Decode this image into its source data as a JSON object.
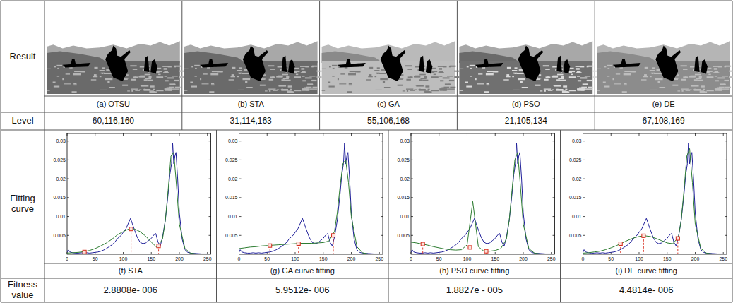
{
  "row_headers": [
    "Result",
    "Level",
    "Fitting curve",
    "Fitness value"
  ],
  "results": [
    {
      "caption": "(a) OTSU",
      "level": "60,116,160"
    },
    {
      "caption": "(b) STA",
      "level": "31,114,163"
    },
    {
      "caption": "(c) GA",
      "level": "55,106,168"
    },
    {
      "caption": "(d) PSO",
      "level": "21,105,134"
    },
    {
      "caption": "(e) DE",
      "level": "67,108,169"
    }
  ],
  "fitness_values": [
    "2.8808e- 006",
    "5.9512e- 006",
    "1.8827e - 005",
    "4.4814e- 006"
  ],
  "chart_data": [
    {
      "type": "line",
      "title": "(f) STA",
      "xlim": [
        0,
        256
      ],
      "ylim": [
        0,
        0.032
      ],
      "xticks": [
        0,
        50,
        100,
        150,
        200,
        250
      ],
      "yticks": [
        0.005,
        0.01,
        0.015,
        0.02,
        0.025,
        0.03
      ],
      "series": [
        {
          "type": "line",
          "color": "#1f1f99",
          "x": [
            0,
            2,
            5,
            10,
            15,
            20,
            25,
            30,
            35,
            40,
            45,
            50,
            55,
            60,
            65,
            70,
            75,
            80,
            85,
            90,
            95,
            100,
            105,
            110,
            113,
            116,
            120,
            125,
            130,
            135,
            140,
            145,
            150,
            155,
            158,
            162,
            166,
            170,
            175,
            180,
            183,
            186,
            188,
            190,
            192,
            194,
            197,
            200,
            205,
            210,
            215,
            220,
            230,
            240,
            250,
            255
          ],
          "values": [
            0.0005,
            0.0012,
            0.0006,
            0.0004,
            0.0003,
            0.0003,
            0.0004,
            0.0003,
            0.0004,
            0.0003,
            0.0004,
            0.0005,
            0.0006,
            0.0008,
            0.0011,
            0.0015,
            0.002,
            0.0025,
            0.0032,
            0.0042,
            0.0048,
            0.0058,
            0.0068,
            0.0085,
            0.0095,
            0.0082,
            0.0065,
            0.0045,
            0.0032,
            0.0028,
            0.003,
            0.0036,
            0.0042,
            0.0052,
            0.0055,
            0.0032,
            0.0022,
            0.0045,
            0.009,
            0.016,
            0.021,
            0.024,
            0.0295,
            0.024,
            0.026,
            0.027,
            0.02,
            0.011,
            0.004,
            0.0012,
            0.0005,
            0.0003,
            0.0002,
            0.0001,
            0.0001,
            0
          ]
        },
        {
          "type": "line",
          "color": "#2e7d32",
          "x": [
            0,
            10,
            20,
            30,
            40,
            50,
            60,
            70,
            80,
            90,
            100,
            110,
            120,
            130,
            140,
            150,
            160,
            170,
            175,
            180,
            185,
            190,
            195,
            200,
            210,
            220,
            230,
            240,
            250,
            255
          ],
          "values": [
            0.0003,
            0.0004,
            0.0005,
            0.0007,
            0.001,
            0.0015,
            0.0022,
            0.003,
            0.004,
            0.0052,
            0.006,
            0.0067,
            0.0067,
            0.006,
            0.0048,
            0.0032,
            0.0018,
            0.004,
            0.009,
            0.017,
            0.026,
            0.027,
            0.018,
            0.008,
            0.0015,
            0.0003,
            0.0001,
            0,
            0,
            0
          ]
        },
        {
          "type": "scatter",
          "color": "#d62718",
          "marker": "square",
          "line_style": "dashed",
          "x": [
            31,
            114,
            163
          ],
          "values": [
            0.0006,
            0.0067,
            0.0022
          ]
        }
      ]
    },
    {
      "type": "line",
      "title": "(g) GA curve fitting",
      "xlim": [
        0,
        256
      ],
      "ylim": [
        0,
        0.032
      ],
      "xticks": [
        0,
        50,
        100,
        150,
        200,
        250
      ],
      "yticks": [
        0.005,
        0.01,
        0.015,
        0.02,
        0.025,
        0.03
      ],
      "series": [
        {
          "type": "line",
          "color": "#1f1f99",
          "x": [
            0,
            2,
            5,
            10,
            15,
            20,
            25,
            30,
            35,
            40,
            45,
            50,
            55,
            60,
            65,
            70,
            75,
            80,
            85,
            90,
            95,
            100,
            105,
            110,
            113,
            116,
            120,
            125,
            130,
            135,
            140,
            145,
            150,
            155,
            158,
            162,
            166,
            170,
            175,
            180,
            183,
            186,
            188,
            190,
            192,
            194,
            197,
            200,
            205,
            210,
            215,
            220,
            230,
            240,
            250,
            255
          ],
          "values": [
            0.0005,
            0.0012,
            0.0006,
            0.0004,
            0.0003,
            0.0003,
            0.0004,
            0.0003,
            0.0004,
            0.0003,
            0.0004,
            0.0005,
            0.0006,
            0.0008,
            0.0011,
            0.0015,
            0.002,
            0.0025,
            0.0032,
            0.0042,
            0.0048,
            0.0058,
            0.0068,
            0.0085,
            0.0095,
            0.0082,
            0.0065,
            0.0045,
            0.0032,
            0.0028,
            0.003,
            0.0036,
            0.0042,
            0.0052,
            0.0055,
            0.0032,
            0.0022,
            0.0045,
            0.009,
            0.016,
            0.021,
            0.024,
            0.0295,
            0.024,
            0.026,
            0.027,
            0.02,
            0.011,
            0.004,
            0.0012,
            0.0005,
            0.0003,
            0.0002,
            0.0001,
            0.0001,
            0
          ]
        },
        {
          "type": "line",
          "color": "#2e7d32",
          "x": [
            0,
            10,
            20,
            30,
            40,
            50,
            60,
            70,
            80,
            90,
            100,
            110,
            120,
            130,
            140,
            150,
            160,
            170,
            175,
            180,
            185,
            190,
            195,
            200,
            210,
            220,
            230,
            240,
            250,
            255
          ],
          "values": [
            0.0015,
            0.0017,
            0.0019,
            0.002,
            0.0022,
            0.0023,
            0.0024,
            0.0025,
            0.0026,
            0.0027,
            0.0028,
            0.0029,
            0.0029,
            0.0029,
            0.003,
            0.0031,
            0.0035,
            0.006,
            0.011,
            0.018,
            0.024,
            0.025,
            0.019,
            0.01,
            0.002,
            0.0004,
            0.0001,
            0,
            0,
            0
          ]
        },
        {
          "type": "scatter",
          "color": "#d62718",
          "marker": "square",
          "line_style": "dashed",
          "x": [
            55,
            106,
            168
          ],
          "values": [
            0.0023,
            0.0028,
            0.005
          ]
        }
      ]
    },
    {
      "type": "line",
      "title": "(h) PSO curve fitting",
      "xlim": [
        0,
        256
      ],
      "ylim": [
        0,
        0.032
      ],
      "xticks": [
        0,
        50,
        100,
        150,
        200,
        250
      ],
      "yticks": [
        0.005,
        0.01,
        0.015,
        0.02,
        0.025,
        0.03
      ],
      "series": [
        {
          "type": "line",
          "color": "#1f1f99",
          "x": [
            0,
            2,
            5,
            10,
            15,
            20,
            25,
            30,
            35,
            40,
            45,
            50,
            55,
            60,
            65,
            70,
            75,
            80,
            85,
            90,
            95,
            100,
            105,
            110,
            113,
            116,
            120,
            125,
            130,
            135,
            140,
            145,
            150,
            155,
            158,
            162,
            166,
            170,
            175,
            180,
            183,
            186,
            188,
            190,
            192,
            194,
            197,
            200,
            205,
            210,
            215,
            220,
            230,
            240,
            250,
            255
          ],
          "values": [
            0.0005,
            0.0012,
            0.0006,
            0.0004,
            0.0003,
            0.0003,
            0.0004,
            0.0003,
            0.0004,
            0.0003,
            0.0004,
            0.0005,
            0.0006,
            0.0008,
            0.0011,
            0.0015,
            0.002,
            0.0025,
            0.0032,
            0.0042,
            0.0048,
            0.0058,
            0.0068,
            0.0085,
            0.0095,
            0.0082,
            0.0065,
            0.0045,
            0.0032,
            0.0028,
            0.003,
            0.0036,
            0.0042,
            0.0052,
            0.0055,
            0.0032,
            0.0022,
            0.0045,
            0.009,
            0.016,
            0.021,
            0.024,
            0.0295,
            0.024,
            0.026,
            0.027,
            0.02,
            0.011,
            0.004,
            0.0012,
            0.0005,
            0.0003,
            0.0002,
            0.0001,
            0.0001,
            0
          ]
        },
        {
          "type": "line",
          "color": "#2e7d32",
          "x": [
            0,
            10,
            20,
            30,
            40,
            50,
            60,
            70,
            80,
            90,
            100,
            110,
            120,
            130,
            140,
            150,
            160,
            170,
            175,
            180,
            185,
            190,
            195,
            200,
            210,
            220,
            230,
            240,
            250,
            255
          ],
          "values": [
            0.0032,
            0.003,
            0.0027,
            0.0024,
            0.002,
            0.0017,
            0.0014,
            0.0012,
            0.0011,
            0.0012,
            0.0025,
            0.014,
            0.002,
            0.0008,
            0.0008,
            0.001,
            0.0015,
            0.004,
            0.009,
            0.017,
            0.025,
            0.027,
            0.018,
            0.008,
            0.0015,
            0.0003,
            0.0001,
            0,
            0,
            0
          ]
        },
        {
          "type": "scatter",
          "color": "#d62718",
          "marker": "square",
          "line_style": "dashed",
          "x": [
            21,
            105,
            134
          ],
          "values": [
            0.0027,
            0.0018,
            0.0008
          ]
        }
      ]
    },
    {
      "type": "line",
      "title": "(i) DE curve fitting",
      "xlim": [
        0,
        256
      ],
      "ylim": [
        0,
        0.032
      ],
      "xticks": [
        0,
        50,
        100,
        150,
        200,
        250
      ],
      "yticks": [
        0.005,
        0.01,
        0.015,
        0.02,
        0.025,
        0.03
      ],
      "series": [
        {
          "type": "line",
          "color": "#1f1f99",
          "x": [
            0,
            2,
            5,
            10,
            15,
            20,
            25,
            30,
            35,
            40,
            45,
            50,
            55,
            60,
            65,
            70,
            75,
            80,
            85,
            90,
            95,
            100,
            105,
            110,
            113,
            116,
            120,
            125,
            130,
            135,
            140,
            145,
            150,
            155,
            158,
            162,
            166,
            170,
            175,
            180,
            183,
            186,
            188,
            190,
            192,
            194,
            197,
            200,
            205,
            210,
            215,
            220,
            230,
            240,
            250,
            255
          ],
          "values": [
            0.0005,
            0.0012,
            0.0006,
            0.0004,
            0.0003,
            0.0003,
            0.0004,
            0.0003,
            0.0004,
            0.0003,
            0.0004,
            0.0005,
            0.0006,
            0.0008,
            0.0011,
            0.0015,
            0.002,
            0.0025,
            0.0032,
            0.0042,
            0.0048,
            0.0058,
            0.0068,
            0.0085,
            0.0095,
            0.0082,
            0.0065,
            0.0045,
            0.0032,
            0.0028,
            0.003,
            0.0036,
            0.0042,
            0.0052,
            0.0055,
            0.0032,
            0.0022,
            0.0045,
            0.009,
            0.016,
            0.021,
            0.024,
            0.0295,
            0.024,
            0.026,
            0.027,
            0.02,
            0.011,
            0.004,
            0.0012,
            0.0005,
            0.0003,
            0.0002,
            0.0001,
            0.0001,
            0
          ]
        },
        {
          "type": "line",
          "color": "#2e7d32",
          "x": [
            0,
            10,
            20,
            30,
            40,
            50,
            60,
            70,
            80,
            90,
            100,
            110,
            120,
            130,
            140,
            150,
            160,
            170,
            175,
            180,
            185,
            190,
            195,
            200,
            210,
            220,
            230,
            240,
            250,
            255
          ],
          "values": [
            0.0003,
            0.0004,
            0.0006,
            0.0008,
            0.0012,
            0.0017,
            0.0023,
            0.003,
            0.0037,
            0.0043,
            0.0047,
            0.0049,
            0.0047,
            0.0042,
            0.0036,
            0.003,
            0.0028,
            0.0045,
            0.009,
            0.017,
            0.026,
            0.028,
            0.019,
            0.008,
            0.0015,
            0.0003,
            0.0001,
            0,
            0,
            0
          ]
        },
        {
          "type": "scatter",
          "color": "#d62718",
          "marker": "square",
          "line_style": "dashed",
          "x": [
            67,
            108,
            169
          ],
          "values": [
            0.0028,
            0.0049,
            0.0042
          ]
        }
      ]
    }
  ]
}
